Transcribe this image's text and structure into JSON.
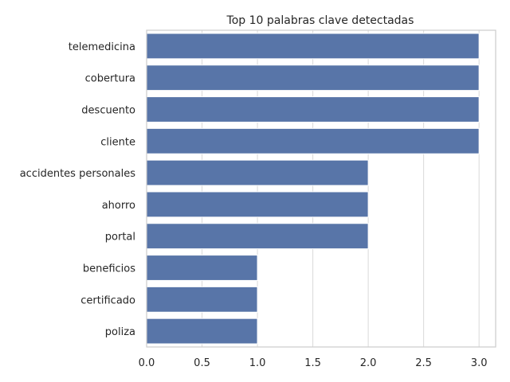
{
  "chart_data": {
    "type": "bar",
    "orientation": "horizontal",
    "title": "Top 10 palabras clave detectadas",
    "xlabel": "",
    "ylabel": "",
    "categories": [
      "telemedicina",
      "cobertura",
      "descuento",
      "cliente",
      "accidentes personales",
      "ahorro",
      "portal",
      "beneficios",
      "certificado",
      "poliza"
    ],
    "values": [
      3,
      3,
      3,
      3,
      2,
      2,
      2,
      1,
      1,
      1
    ],
    "xlim": [
      0,
      3.15
    ],
    "xticks": [
      "0.0",
      "0.5",
      "1.0",
      "1.5",
      "2.0",
      "2.5",
      "3.0"
    ],
    "grid": true,
    "bar_color": "#5875a8",
    "grid_color": "#d9d9d9",
    "axis_color": "#cccccc"
  }
}
